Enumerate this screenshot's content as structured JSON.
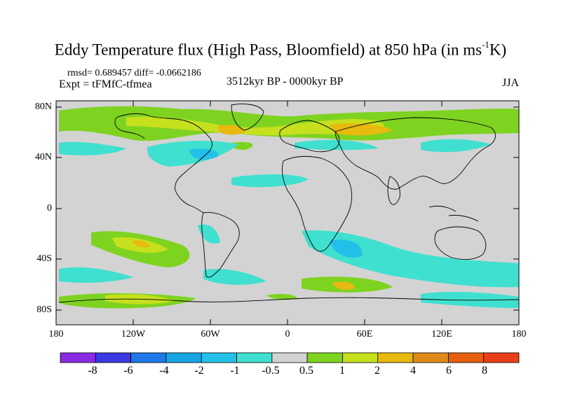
{
  "title": {
    "main": "Eddy Temperature flux (High Pass, Bloomfield) at 850 hPa (in ms",
    "exp": "-1",
    "unit_end": "K)"
  },
  "stats": "rmsd= 0.689457 diff= -0.0662186",
  "experiment": "Expt = tFMfC-tfmea",
  "period": "3512kyr BP - 0000kyr BP",
  "season": "JJA",
  "lat_labels": [
    "80N",
    "40N",
    "0",
    "40S",
    "80S"
  ],
  "lon_labels": [
    "180",
    "120W",
    "60W",
    "0",
    "60E",
    "120E",
    "180"
  ],
  "colorbar": {
    "labels": [
      "-8",
      "-6",
      "-4",
      "-2",
      "-1",
      "-0.5",
      "0.5",
      "1",
      "2",
      "4",
      "6",
      "8"
    ],
    "colors": [
      "#8a2be2",
      "#3a3ae0",
      "#1e78e6",
      "#17a6e3",
      "#22c0e8",
      "#40e0d0",
      "#d3d3d3",
      "#7ed321",
      "#c6e01e",
      "#e8b90e",
      "#e0891a",
      "#e46010",
      "#e8401a"
    ]
  },
  "colors": {
    "land_bg": "#d3d3d3",
    "coast": "#000000"
  }
}
